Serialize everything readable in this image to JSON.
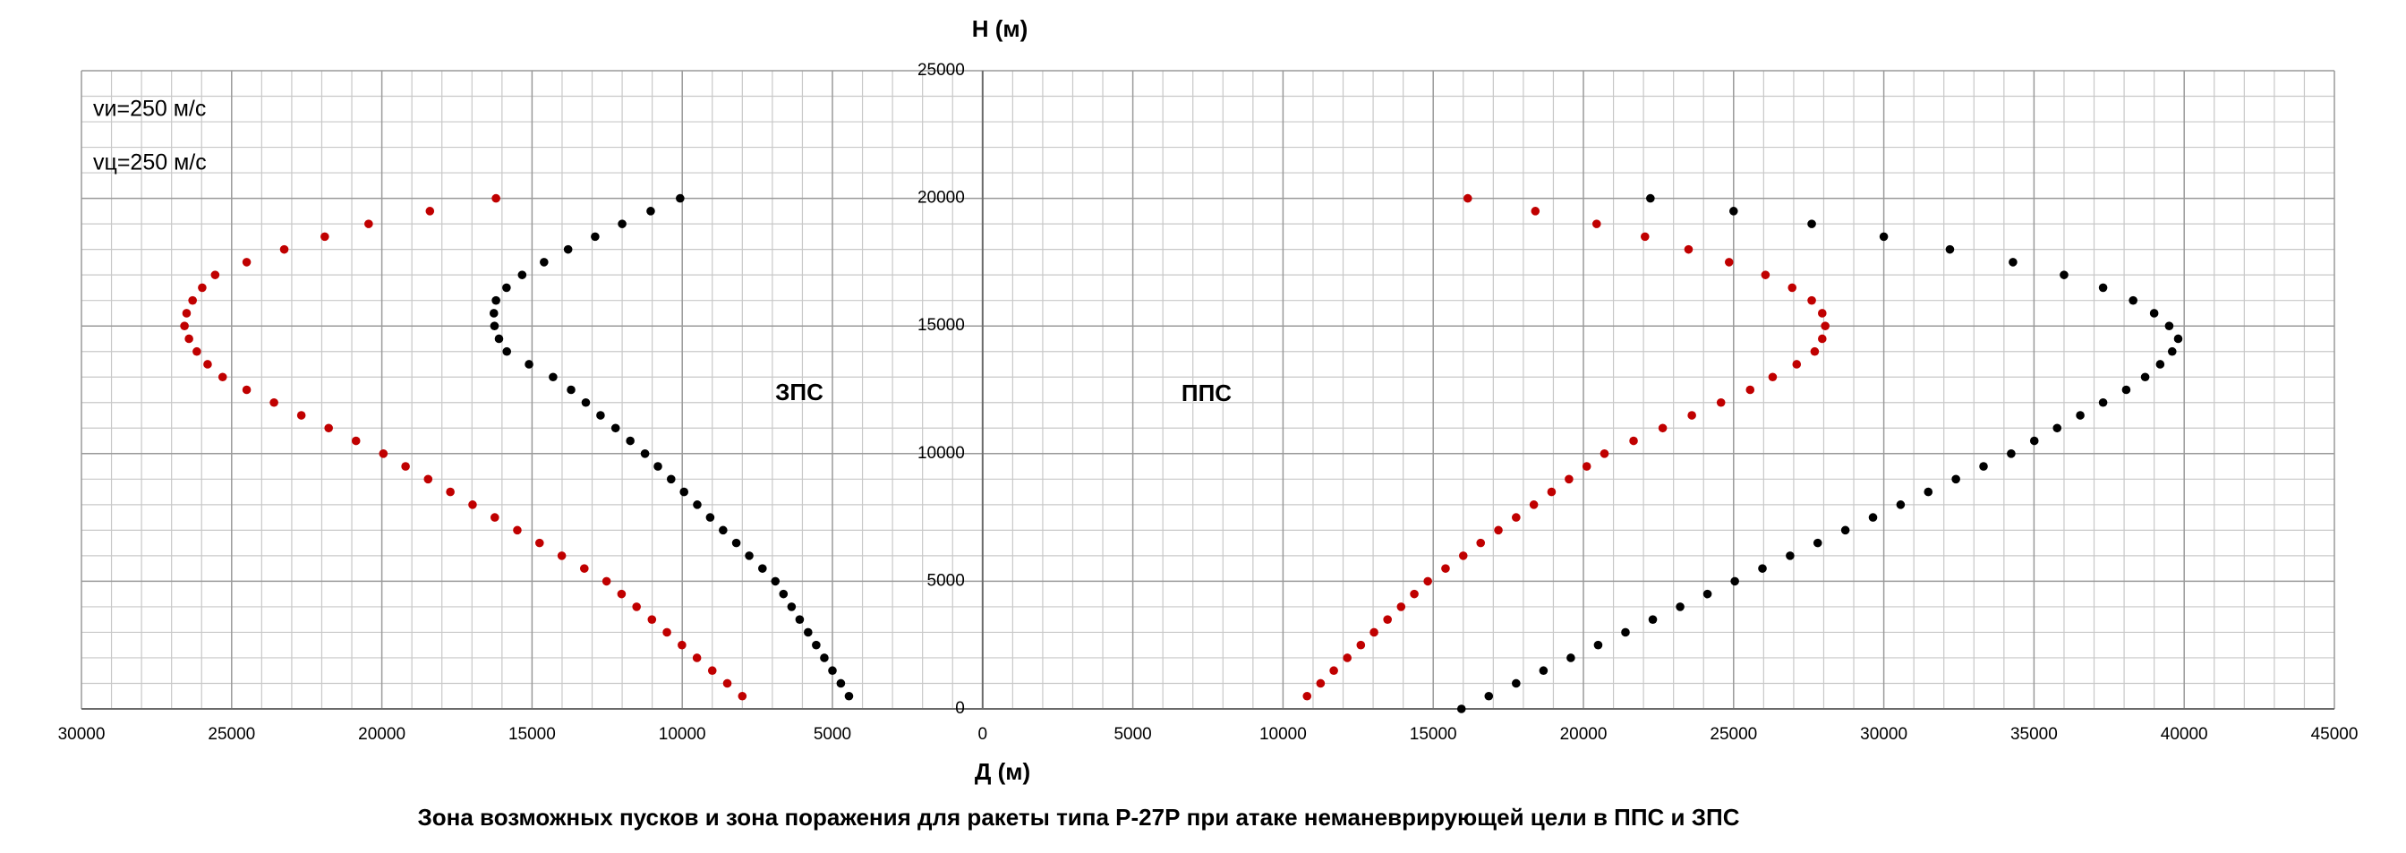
{
  "chart_data": {
    "type": "scatter",
    "title": "Зона возможных пусков и зона поражения для ракеты типа Р-27Р при атаке неманеврирующей цели в ППС и ЗПС",
    "x_label": "Д (м)",
    "y_label": "Н (м)",
    "annotations": [
      "vи=250 м/с",
      "vц=250 м/с",
      "ЗПС",
      "ППС"
    ],
    "xlim": [
      -30000,
      45000
    ],
    "ylim": [
      0,
      25000
    ],
    "xticks": [
      {
        "value": -30000,
        "label": "30000"
      },
      {
        "value": -25000,
        "label": "25000"
      },
      {
        "value": -20000,
        "label": "20000"
      },
      {
        "value": -15000,
        "label": "15000"
      },
      {
        "value": -10000,
        "label": "10000"
      },
      {
        "value": -5000,
        "label": "5000"
      },
      0,
      5000,
      10000,
      15000,
      20000,
      25000,
      30000,
      35000,
      40000,
      45000
    ],
    "yticks": [
      0,
      5000,
      10000,
      15000,
      20000,
      25000
    ],
    "grid": true,
    "series": [
      {
        "color": "#c00000",
        "x": [
          -8000,
          -8500,
          -9000,
          -9510,
          -10010,
          -10510,
          -11010,
          -11520,
          -12020,
          -12520,
          -13260,
          -14010,
          -14750,
          -15490,
          -16240,
          -16980,
          -17720,
          -18460,
          -19210,
          -19950,
          -20860,
          -21770,
          -22680,
          -23590,
          -24500,
          -25300,
          -25800,
          -26160,
          -26420,
          -26570,
          -26500,
          -26300,
          -25980,
          -25550,
          -24500,
          -23250,
          -21900,
          -20440,
          -18400,
          -16200
        ],
        "values": [
          500,
          1000,
          1500,
          2000,
          2500,
          3000,
          3500,
          4000,
          4500,
          5000,
          5500,
          6000,
          6500,
          7000,
          7500,
          8000,
          8500,
          9000,
          9500,
          10000,
          10500,
          11000,
          11500,
          12000,
          12500,
          13000,
          13500,
          14000,
          14500,
          15000,
          15500,
          16000,
          16500,
          17000,
          17500,
          18000,
          18500,
          19000,
          19500,
          20000
        ]
      },
      {
        "color": "#000000",
        "x": [
          -4450,
          -4720,
          -5000,
          -5270,
          -5540,
          -5810,
          -6090,
          -6360,
          -6630,
          -6900,
          -7330,
          -7770,
          -8200,
          -8640,
          -9070,
          -9500,
          -9940,
          -10370,
          -10810,
          -11240,
          -11730,
          -12220,
          -12720,
          -13210,
          -13700,
          -14300,
          -15100,
          -15840,
          -16100,
          -16250,
          -16270,
          -16200,
          -15850,
          -15330,
          -14600,
          -13800,
          -12900,
          -12000,
          -11050,
          -10070
        ],
        "values": [
          500,
          1000,
          1500,
          2000,
          2500,
          3000,
          3500,
          4000,
          4500,
          5000,
          5500,
          6000,
          6500,
          7000,
          7500,
          8000,
          8500,
          9000,
          9500,
          10000,
          10500,
          11000,
          11500,
          12000,
          12500,
          13000,
          13500,
          14000,
          14500,
          15000,
          15500,
          16000,
          16500,
          17000,
          17500,
          18000,
          18500,
          19000,
          19500,
          20000
        ]
      },
      {
        "color": "#c00000",
        "x": [
          10800,
          11250,
          11690,
          12140,
          12590,
          13030,
          13480,
          13930,
          14370,
          14820,
          15410,
          16000,
          16580,
          17170,
          17760,
          18350,
          18940,
          19520,
          20110,
          20700,
          21670,
          22640,
          23610,
          24580,
          25550,
          26300,
          27100,
          27700,
          27950,
          28050,
          27950,
          27600,
          26950,
          26060,
          24850,
          23500,
          22050,
          20440,
          18400,
          16150
        ],
        "values": [
          500,
          1000,
          1500,
          2000,
          2500,
          3000,
          3500,
          4000,
          4500,
          5000,
          5500,
          6000,
          6500,
          7000,
          7500,
          8000,
          8500,
          9000,
          9500,
          10000,
          10500,
          11000,
          11500,
          12000,
          12500,
          13000,
          13500,
          14000,
          14500,
          15000,
          15500,
          16000,
          16500,
          17000,
          17500,
          18000,
          18500,
          19000,
          19500,
          20000
        ]
      },
      {
        "color": "#000000",
        "x": [
          15940,
          16850,
          17760,
          18670,
          19580,
          20490,
          21400,
          22310,
          23220,
          24130,
          25040,
          25960,
          26880,
          27800,
          28720,
          29640,
          30560,
          31480,
          32400,
          33320,
          34240,
          35010,
          35770,
          36540,
          37300,
          38070,
          38700,
          39200,
          39600,
          39800,
          39500,
          39000,
          38300,
          37300,
          36000,
          34300,
          32200,
          30000,
          27600,
          25000,
          22230
        ],
        "values": [
          0,
          500,
          1000,
          1500,
          2000,
          2500,
          3000,
          3500,
          4000,
          4500,
          5000,
          5500,
          6000,
          6500,
          7000,
          7500,
          8000,
          8500,
          9000,
          9500,
          10000,
          10500,
          11000,
          11500,
          12000,
          12500,
          13000,
          13500,
          14000,
          14500,
          15000,
          15500,
          16000,
          16500,
          17000,
          17500,
          18000,
          18500,
          19000,
          19500,
          20000
        ]
      }
    ]
  }
}
